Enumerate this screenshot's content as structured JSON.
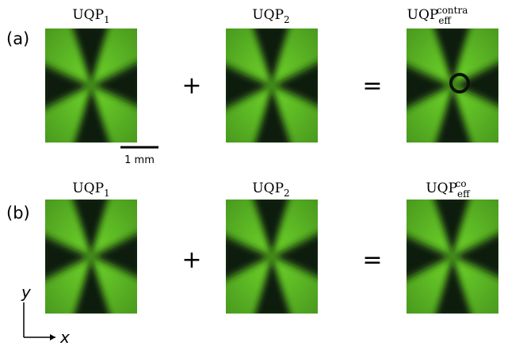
{
  "rows": [
    {
      "label": "(a)",
      "items": [
        {
          "name": "UQP",
          "sub": "1"
        },
        {
          "name": "UQP",
          "sub": "2"
        },
        {
          "name": "UQP",
          "sub": "eff",
          "sup": "contra"
        }
      ],
      "operators": [
        "+",
        "="
      ]
    },
    {
      "label": "(b)",
      "items": [
        {
          "name": "UQP",
          "sub": "1"
        },
        {
          "name": "UQP",
          "sub": "2"
        },
        {
          "name": "UQP",
          "sub": "eff",
          "sup": "co"
        }
      ],
      "operators": [
        "+",
        "="
      ]
    }
  ],
  "scale_bar": "1 mm",
  "axes": {
    "y": "y",
    "x": "x"
  }
}
